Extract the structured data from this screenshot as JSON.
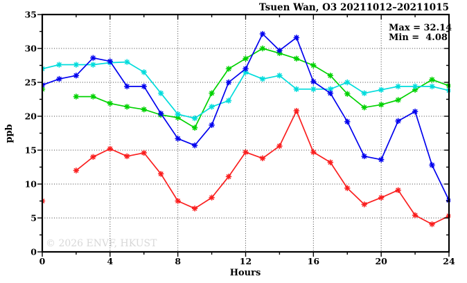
{
  "chart_data": {
    "type": "line",
    "title": "Tsuen Wan, O3 20211012–20211015",
    "xlabel": "Hours",
    "ylabel": "ppb",
    "xlim": [
      0,
      24
    ],
    "ylim": [
      0,
      35
    ],
    "x_major_ticks": [
      0,
      4,
      8,
      12,
      16,
      20,
      24
    ],
    "x_minor_ticks": [
      2,
      6,
      10,
      14,
      18,
      22
    ],
    "y_major_ticks": [
      0,
      5,
      10,
      15,
      20,
      25,
      30,
      35
    ],
    "y_minor_ticks": [
      2.5,
      7.5,
      12.5,
      17.5,
      22.5,
      27.5,
      32.5
    ],
    "x_gridlines": [
      4,
      8,
      12,
      16,
      20
    ],
    "y_gridlines": [
      5,
      10,
      15,
      20,
      25,
      30
    ],
    "grid_style": "dotted",
    "legend": "none",
    "marker": "asterisk",
    "x": [
      0,
      1,
      2,
      3,
      4,
      5,
      6,
      7,
      8,
      9,
      10,
      11,
      12,
      13,
      14,
      15,
      16,
      17,
      18,
      19,
      20,
      21,
      22,
      23,
      24
    ],
    "series": [
      {
        "name": "red-line",
        "color": "#fa1e1e",
        "values": [
          7.5,
          null,
          12.0,
          14.0,
          15.2,
          14.1,
          14.6,
          11.5,
          7.5,
          6.4,
          8.0,
          11.1,
          14.7,
          13.8,
          15.6,
          20.8,
          14.7,
          13.2,
          9.4,
          7.0,
          8.0,
          9.1,
          5.4,
          4.08,
          5.3
        ]
      },
      {
        "name": "green-line",
        "color": "#00d200",
        "values": [
          24.0,
          null,
          22.9,
          22.9,
          21.9,
          21.4,
          21.0,
          20.2,
          19.8,
          18.3,
          23.4,
          27.0,
          28.5,
          30.0,
          29.3,
          28.5,
          27.5,
          26.0,
          23.3,
          21.3,
          21.7,
          22.4,
          23.9,
          25.4,
          24.5
        ]
      },
      {
        "name": "cyan-line",
        "color": "#00dcdc",
        "values": [
          27.0,
          27.6,
          27.6,
          27.6,
          27.9,
          28.0,
          26.5,
          23.4,
          20.3,
          19.7,
          21.4,
          22.3,
          26.5,
          25.5,
          26.0,
          24.0,
          24.0,
          24.0,
          25.0,
          23.4,
          23.9,
          24.4,
          24.4,
          24.4,
          23.8
        ]
      },
      {
        "name": "blue-line",
        "color": "#0000ee",
        "values": [
          24.6,
          25.5,
          26.0,
          28.6,
          28.1,
          24.4,
          24.4,
          20.4,
          16.7,
          15.7,
          18.7,
          25.0,
          27.0,
          32.14,
          29.7,
          31.6,
          25.1,
          23.4,
          19.2,
          14.1,
          13.6,
          19.3,
          20.7,
          12.8,
          7.6
        ]
      }
    ],
    "annotations": {
      "max": "Max = 32.14",
      "min": "Min =  4.08"
    },
    "watermark": "© 2026 ENVF, HKUST"
  }
}
